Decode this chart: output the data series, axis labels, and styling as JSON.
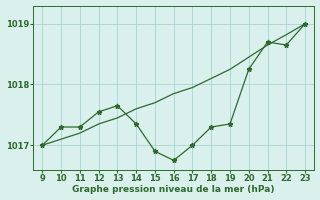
{
  "hours_line1": [
    9,
    10,
    11,
    12,
    13,
    14,
    15,
    16,
    17,
    18,
    19,
    20,
    21,
    22,
    23
  ],
  "values_line1": [
    1017.0,
    1017.3,
    1017.3,
    1017.55,
    1017.65,
    1017.35,
    1016.9,
    1016.75,
    1017.0,
    1017.3,
    1017.35,
    1018.25,
    1018.7,
    1018.65,
    1019.0
  ],
  "hours_line2": [
    9,
    10,
    11,
    12,
    13,
    14,
    15,
    16,
    17,
    18,
    19,
    20,
    21,
    22,
    23
  ],
  "values_line2": [
    1017.0,
    1017.1,
    1017.2,
    1017.35,
    1017.45,
    1017.6,
    1017.7,
    1017.85,
    1017.95,
    1018.1,
    1018.25,
    1018.45,
    1018.65,
    1018.82,
    1019.0
  ],
  "line_color": "#2d6a2d",
  "bg_color": "#daf0ec",
  "grid_color": "#9ecece",
  "xlabel": "Graphe pression niveau de la mer (hPa)",
  "ylim": [
    1016.6,
    1019.3
  ],
  "xlim": [
    8.5,
    23.5
  ],
  "yticks": [
    1017,
    1018,
    1019
  ],
  "xticks": [
    9,
    10,
    11,
    12,
    13,
    14,
    15,
    16,
    17,
    18,
    19,
    20,
    21,
    22,
    23
  ]
}
